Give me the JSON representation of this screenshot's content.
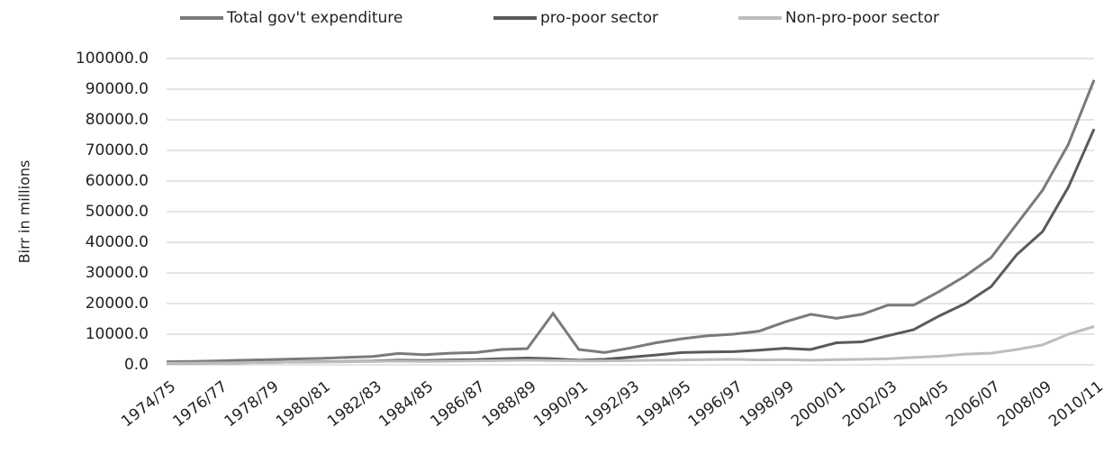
{
  "chart_data": {
    "type": "line",
    "y_axis_label": "Birr in millions",
    "categories": [
      "1974/75",
      null,
      "1976/77",
      null,
      "1978/79",
      null,
      "1980/81",
      null,
      "1982/83",
      null,
      "1984/85",
      null,
      "1986/87",
      null,
      "1988/89",
      null,
      "1990/91",
      null,
      "1992/93",
      null,
      "1994/95",
      null,
      "1996/97",
      null,
      "1998/99",
      null,
      "2000/01",
      null,
      "2002/03",
      null,
      "2004/05",
      null,
      "2006/07",
      null,
      "2008/09",
      null,
      "2010/11"
    ],
    "series": [
      {
        "name": "Total gov't expenditure",
        "color": "#7a7a7a",
        "values": [
          1000,
          1100,
          1300,
          1500,
          1700,
          1900,
          2100,
          2400,
          2700,
          3700,
          3300,
          3800,
          4000,
          5000,
          5300,
          16800,
          5000,
          4000,
          5500,
          7200,
          8500,
          9500,
          10000,
          11000,
          14000,
          16500,
          15200,
          16500,
          19500,
          19500,
          24000,
          29000,
          35000,
          46000,
          57000,
          72000,
          93000
        ]
      },
      {
        "name": "pro-poor sector",
        "color": "#5a5a5a",
        "values": [
          500,
          550,
          600,
          700,
          800,
          900,
          1000,
          1100,
          1200,
          1500,
          1400,
          1600,
          1700,
          2000,
          2200,
          2000,
          1500,
          1800,
          2500,
          3200,
          4000,
          4200,
          4300,
          4800,
          5400,
          5000,
          7200,
          7500,
          9500,
          11500,
          16000,
          20000,
          25500,
          36000,
          43500,
          58000,
          77000
        ]
      },
      {
        "name": "Non-pro-poor sector",
        "color": "#bdbdbd",
        "values": [
          500,
          550,
          600,
          700,
          800,
          900,
          900,
          1000,
          1100,
          1200,
          1100,
          1200,
          1300,
          1400,
          1500,
          1400,
          1300,
          1300,
          1400,
          1500,
          1600,
          1700,
          1800,
          1600,
          1700,
          1500,
          1700,
          1800,
          2000,
          2400,
          2800,
          3500,
          3800,
          5000,
          6500,
          10000,
          12500
        ]
      }
    ],
    "ylim": [
      0,
      100000
    ],
    "yticks": [
      {
        "value": 0,
        "label": "0.0"
      },
      {
        "value": 10000,
        "label": "10000.0"
      },
      {
        "value": 20000,
        "label": "20000.0"
      },
      {
        "value": 30000,
        "label": "30000.0"
      },
      {
        "value": 40000,
        "label": "40000.0"
      },
      {
        "value": 50000,
        "label": "50000.0"
      },
      {
        "value": 60000,
        "label": "60000.0"
      },
      {
        "value": 70000,
        "label": "70000.0"
      },
      {
        "value": 80000,
        "label": "80000.0"
      },
      {
        "value": 90000,
        "label": "90000.0"
      },
      {
        "value": 100000,
        "label": "100000.0"
      }
    ],
    "grid": true,
    "legend": "top"
  }
}
